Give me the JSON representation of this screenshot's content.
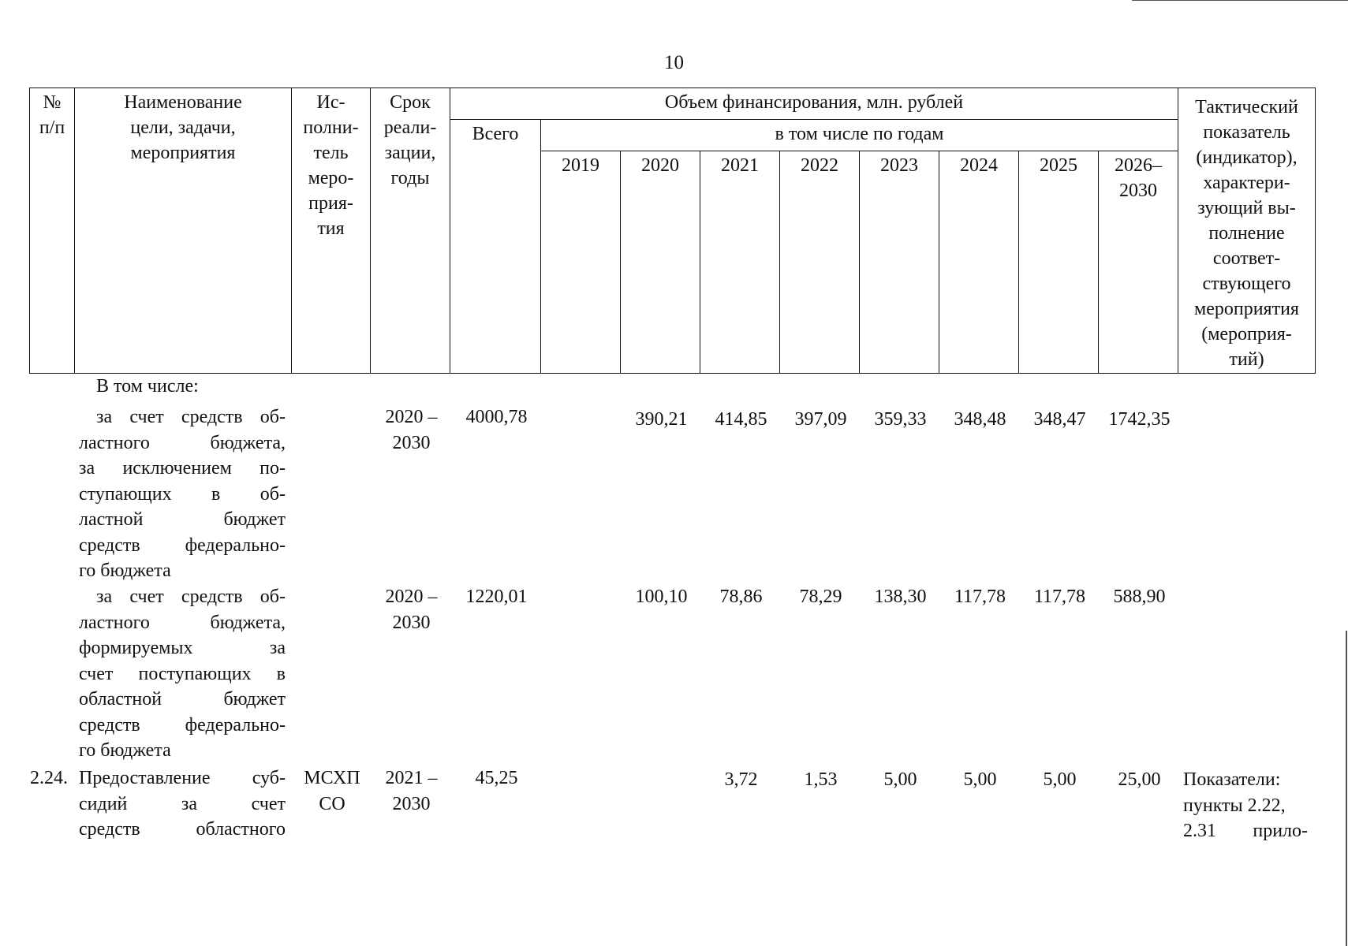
{
  "page_number": "10",
  "header": {
    "num": [
      "№",
      "п/п"
    ],
    "name": [
      "Наименование",
      "цели, задачи,",
      "мероприятия"
    ],
    "executor": [
      "Ис-",
      "полни-",
      "тель",
      "меро-",
      "прия-",
      "тия"
    ],
    "term": [
      "Срок",
      "реали-",
      "зации,",
      "годы"
    ],
    "funding": "Объем финансирования, млн. рублей",
    "total": "Всего",
    "by_years": "в том числе по годам",
    "years": [
      "2019",
      "2020",
      "2021",
      "2022",
      "2023",
      "2024",
      "2025",
      "2026–2030"
    ],
    "indicator": [
      "Тактический",
      "показатель",
      "(индикатор),",
      "характери-",
      "зующий вы-",
      "полнение",
      "соответ-",
      "ствующего",
      "мероприятия",
      "(мероприя-",
      "тий)"
    ]
  },
  "rows": {
    "including": "В том числе:",
    "r1": {
      "name": [
        "за счет средств об-",
        "ластного бюджета,",
        "за исключением по-",
        "ступающих в об-",
        "ластной бюджет",
        "средств федерально-",
        "го бюджета"
      ],
      "term": [
        "2020 –",
        "2030"
      ],
      "total": "4000,78",
      "values": [
        "",
        "390,21",
        "414,85",
        "397,09",
        "359,33",
        "348,48",
        "348,47",
        "1742,35"
      ]
    },
    "r2": {
      "name": [
        "за счет средств об-",
        "ластного бюджета,",
        "формируемых за",
        "счет поступающих в",
        "областной бюджет",
        "средств федерально-",
        "го бюджета"
      ],
      "term": [
        "2020 –",
        "2030"
      ],
      "total": "1220,01",
      "values": [
        "",
        "100,10",
        "78,86",
        "78,29",
        "138,30",
        "117,78",
        "117,78",
        "588,90"
      ]
    },
    "r3": {
      "num": "2.24.",
      "name": [
        "Предоставление суб-",
        "сидий за счет",
        "средств областного"
      ],
      "executor": [
        "МСХП",
        "СО"
      ],
      "term": [
        "2021 –",
        "2030"
      ],
      "total": "45,25",
      "values": [
        "",
        "",
        "3,72",
        "1,53",
        "5,00",
        "5,00",
        "5,00",
        "25,00"
      ],
      "indicator": [
        "Показатели:",
        "пункты 2.22,",
        "2.31 прило-"
      ]
    }
  }
}
